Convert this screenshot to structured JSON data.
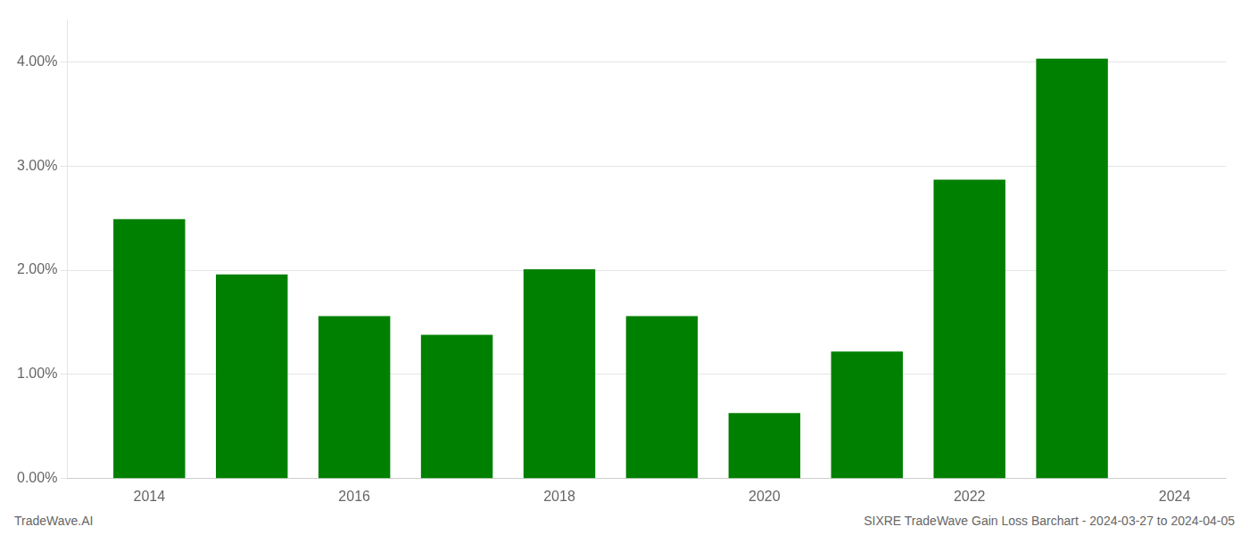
{
  "chart_data": {
    "type": "bar",
    "x": [
      2014,
      2015,
      2016,
      2017,
      2018,
      2019,
      2020,
      2021,
      2022,
      2023
    ],
    "values": [
      0.0249,
      0.0196,
      0.0156,
      0.0138,
      0.0201,
      0.0156,
      0.0063,
      0.0122,
      0.0287,
      0.0403
    ],
    "color": "#008000",
    "xlim": [
      2013.2,
      2024.5
    ],
    "xticks": [
      2014,
      2016,
      2018,
      2020,
      2022,
      2024
    ],
    "ylim": [
      0,
      0.044
    ],
    "yticks": [
      {
        "value": 0.0,
        "label": "0.00%"
      },
      {
        "value": 0.01,
        "label": "1.00%"
      },
      {
        "value": 0.02,
        "label": "2.00%"
      },
      {
        "value": 0.03,
        "label": "3.00%"
      },
      {
        "value": 0.04,
        "label": "4.00%"
      }
    ],
    "grid": true,
    "annotations": [
      "TradeWave.AI",
      "SIXRE TradeWave Gain Loss Barchart - 2024-03-27 to 2024-04-05"
    ]
  }
}
